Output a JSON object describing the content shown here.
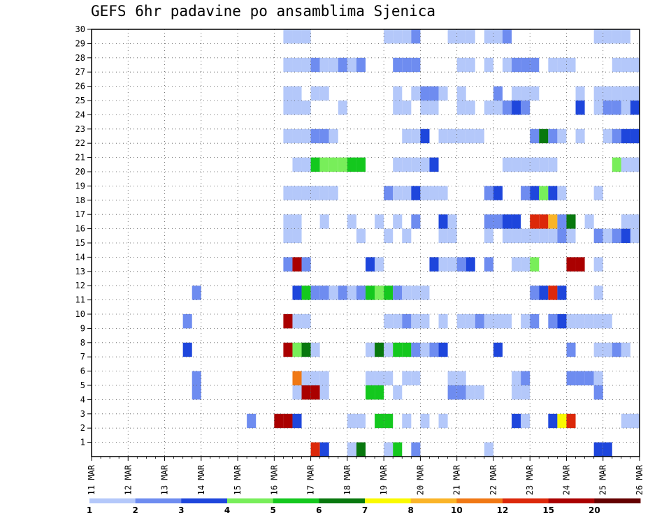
{
  "chart_data": {
    "type": "heatmap",
    "title": "GEFS 6hr padavine po ansamblima Sjenica",
    "x_tick_labels": [
      "11 MAR",
      "12 MAR",
      "13 MAR",
      "14 MAR",
      "15 MAR",
      "16 MAR",
      "17 MAR",
      "18 MAR",
      "19 MAR",
      "20 MAR",
      "21 MAR",
      "22 MAR",
      "23 MAR",
      "24 MAR",
      "25 MAR",
      "26 MAR"
    ],
    "y_tick_labels": [
      "1",
      "2",
      "3",
      "4",
      "5",
      "6",
      "7",
      "8",
      "9",
      "10",
      "11",
      "12",
      "13",
      "14",
      "15",
      "16",
      "17",
      "18",
      "19",
      "20",
      "21",
      "22",
      "23",
      "24",
      "25",
      "26",
      "27",
      "28",
      "29",
      "30"
    ],
    "grid": true,
    "colorbar": {
      "placement": "bottom",
      "thresholds": [
        1,
        2,
        3,
        4,
        5,
        6,
        7,
        8,
        10,
        12,
        15,
        20
      ],
      "colors": [
        "#b4c8fa",
        "#6e8cf0",
        "#1e46dc",
        "#78ee5a",
        "#14c81e",
        "#08780e",
        "#fafa00",
        "#fab428",
        "#f07814",
        "#dc280a",
        "#aa0000",
        "#640000"
      ]
    },
    "notes_rows": "cells indexed by 6-hr step from 11 MAR 00Z; value codes are colorbar bin indices (1-12)",
    "cells": [
      [
        0,
        24,
        10
      ],
      [
        0,
        25,
        3
      ],
      [
        0,
        28,
        1
      ],
      [
        0,
        29,
        6
      ],
      [
        0,
        32,
        1
      ],
      [
        0,
        33,
        5
      ],
      [
        0,
        35,
        2
      ],
      [
        0,
        43,
        1
      ],
      [
        0,
        55,
        3
      ],
      [
        0,
        56,
        3
      ],
      [
        0,
        65,
        1
      ],
      [
        1,
        17,
        2
      ],
      [
        1,
        20,
        11
      ],
      [
        1,
        21,
        11
      ],
      [
        1,
        22,
        3
      ],
      [
        1,
        28,
        1
      ],
      [
        1,
        29,
        1
      ],
      [
        1,
        31,
        5
      ],
      [
        1,
        32,
        5
      ],
      [
        1,
        34,
        1
      ],
      [
        1,
        36,
        1
      ],
      [
        1,
        38,
        1
      ],
      [
        1,
        46,
        3
      ],
      [
        1,
        47,
        1
      ],
      [
        1,
        50,
        3
      ],
      [
        1,
        51,
        7
      ],
      [
        1,
        52,
        10
      ],
      [
        1,
        58,
        1
      ],
      [
        1,
        59,
        1
      ],
      [
        2,
        11,
        2
      ],
      [
        2,
        22,
        1
      ],
      [
        2,
        23,
        11
      ],
      [
        2,
        24,
        11
      ],
      [
        2,
        25,
        1
      ],
      [
        2,
        30,
        5
      ],
      [
        2,
        31,
        5
      ],
      [
        2,
        33,
        1
      ],
      [
        2,
        39,
        2
      ],
      [
        2,
        40,
        2
      ],
      [
        2,
        41,
        1
      ],
      [
        2,
        42,
        1
      ],
      [
        2,
        46,
        1
      ],
      [
        2,
        47,
        1
      ],
      [
        2,
        55,
        2
      ],
      [
        3,
        11,
        2
      ],
      [
        3,
        22,
        9
      ],
      [
        3,
        23,
        1
      ],
      [
        3,
        24,
        1
      ],
      [
        3,
        25,
        1
      ],
      [
        3,
        30,
        1
      ],
      [
        3,
        31,
        1
      ],
      [
        3,
        32,
        1
      ],
      [
        3,
        34,
        1
      ],
      [
        3,
        35,
        1
      ],
      [
        3,
        39,
        1
      ],
      [
        3,
        40,
        1
      ],
      [
        3,
        46,
        1
      ],
      [
        3,
        47,
        2
      ],
      [
        3,
        52,
        2
      ],
      [
        3,
        53,
        2
      ],
      [
        3,
        54,
        2
      ],
      [
        3,
        55,
        1
      ],
      [
        4,
        10,
        3
      ],
      [
        4,
        21,
        11
      ],
      [
        4,
        22,
        4
      ],
      [
        4,
        23,
        6
      ],
      [
        4,
        24,
        1
      ],
      [
        4,
        30,
        1
      ],
      [
        4,
        31,
        6
      ],
      [
        4,
        32,
        1
      ],
      [
        4,
        33,
        5
      ],
      [
        4,
        34,
        5
      ],
      [
        4,
        35,
        2
      ],
      [
        4,
        36,
        1
      ],
      [
        4,
        37,
        2
      ],
      [
        4,
        38,
        3
      ],
      [
        4,
        44,
        3
      ],
      [
        4,
        52,
        2
      ],
      [
        4,
        55,
        1
      ],
      [
        4,
        56,
        1
      ],
      [
        4,
        57,
        2
      ],
      [
        4,
        58,
        1
      ],
      [
        5,
        10,
        2
      ],
      [
        5,
        21,
        11
      ],
      [
        5,
        22,
        1
      ],
      [
        5,
        23,
        1
      ],
      [
        5,
        32,
        1
      ],
      [
        5,
        33,
        1
      ],
      [
        5,
        34,
        2
      ],
      [
        5,
        35,
        1
      ],
      [
        5,
        36,
        1
      ],
      [
        5,
        38,
        1
      ],
      [
        5,
        40,
        1
      ],
      [
        5,
        41,
        1
      ],
      [
        5,
        42,
        2
      ],
      [
        5,
        43,
        1
      ],
      [
        5,
        44,
        1
      ],
      [
        5,
        45,
        1
      ],
      [
        5,
        47,
        1
      ],
      [
        5,
        48,
        2
      ],
      [
        5,
        50,
        2
      ],
      [
        5,
        51,
        3
      ],
      [
        5,
        52,
        1
      ],
      [
        5,
        53,
        1
      ],
      [
        5,
        54,
        1
      ],
      [
        5,
        55,
        1
      ],
      [
        5,
        56,
        1
      ],
      [
        6,
        11,
        2
      ],
      [
        6,
        22,
        3
      ],
      [
        6,
        23,
        5
      ],
      [
        6,
        24,
        2
      ],
      [
        6,
        25,
        2
      ],
      [
        6,
        26,
        1
      ],
      [
        6,
        27,
        2
      ],
      [
        6,
        28,
        1
      ],
      [
        6,
        29,
        2
      ],
      [
        6,
        30,
        5
      ],
      [
        6,
        31,
        4
      ],
      [
        6,
        32,
        5
      ],
      [
        6,
        33,
        2
      ],
      [
        6,
        34,
        1
      ],
      [
        6,
        35,
        1
      ],
      [
        6,
        36,
        1
      ],
      [
        6,
        48,
        2
      ],
      [
        6,
        49,
        3
      ],
      [
        6,
        50,
        10
      ],
      [
        6,
        51,
        3
      ],
      [
        6,
        55,
        1
      ],
      [
        7,
        21,
        2
      ],
      [
        7,
        22,
        11
      ],
      [
        7,
        23,
        2
      ],
      [
        7,
        30,
        3
      ],
      [
        7,
        31,
        1
      ],
      [
        7,
        37,
        3
      ],
      [
        7,
        38,
        1
      ],
      [
        7,
        39,
        1
      ],
      [
        7,
        40,
        2
      ],
      [
        7,
        41,
        3
      ],
      [
        7,
        43,
        2
      ],
      [
        7,
        46,
        1
      ],
      [
        7,
        47,
        1
      ],
      [
        7,
        48,
        4
      ],
      [
        7,
        52,
        11
      ],
      [
        7,
        53,
        11
      ],
      [
        7,
        55,
        1
      ],
      [
        8,
        21,
        1
      ],
      [
        8,
        22,
        1
      ],
      [
        8,
        29,
        1
      ],
      [
        8,
        32,
        1
      ],
      [
        8,
        34,
        1
      ],
      [
        8,
        38,
        1
      ],
      [
        8,
        39,
        1
      ],
      [
        8,
        43,
        1
      ],
      [
        8,
        45,
        1
      ],
      [
        8,
        46,
        1
      ],
      [
        8,
        47,
        1
      ],
      [
        8,
        48,
        1
      ],
      [
        8,
        49,
        1
      ],
      [
        8,
        50,
        1
      ],
      [
        8,
        51,
        2
      ],
      [
        8,
        52,
        1
      ],
      [
        8,
        55,
        2
      ],
      [
        8,
        56,
        1
      ],
      [
        8,
        57,
        2
      ],
      [
        8,
        58,
        3
      ],
      [
        8,
        59,
        1
      ],
      [
        9,
        21,
        1
      ],
      [
        9,
        22,
        1
      ],
      [
        9,
        25,
        1
      ],
      [
        9,
        28,
        1
      ],
      [
        9,
        31,
        1
      ],
      [
        9,
        33,
        1
      ],
      [
        9,
        35,
        2
      ],
      [
        9,
        38,
        3
      ],
      [
        9,
        39,
        1
      ],
      [
        9,
        43,
        2
      ],
      [
        9,
        44,
        2
      ],
      [
        9,
        45,
        3
      ],
      [
        9,
        46,
        3
      ],
      [
        9,
        48,
        10
      ],
      [
        9,
        49,
        10
      ],
      [
        9,
        50,
        8
      ],
      [
        9,
        51,
        2
      ],
      [
        9,
        52,
        6
      ],
      [
        9,
        54,
        1
      ],
      [
        9,
        58,
        1
      ],
      [
        9,
        59,
        1
      ],
      [
        9,
        60,
        1
      ],
      [
        9,
        61,
        1
      ],
      [
        10,
        21,
        1
      ],
      [
        10,
        22,
        1
      ],
      [
        10,
        23,
        1
      ],
      [
        10,
        24,
        1
      ],
      [
        10,
        25,
        1
      ],
      [
        10,
        26,
        1
      ],
      [
        10,
        32,
        2
      ],
      [
        10,
        33,
        1
      ],
      [
        10,
        34,
        1
      ],
      [
        10,
        35,
        3
      ],
      [
        10,
        36,
        1
      ],
      [
        10,
        37,
        1
      ],
      [
        10,
        38,
        1
      ],
      [
        10,
        43,
        2
      ],
      [
        10,
        44,
        3
      ],
      [
        10,
        47,
        2
      ],
      [
        10,
        48,
        3
      ],
      [
        10,
        49,
        4
      ],
      [
        10,
        50,
        3
      ],
      [
        10,
        51,
        1
      ],
      [
        10,
        55,
        1
      ],
      [
        11,
        22,
        1
      ],
      [
        11,
        23,
        1
      ],
      [
        11,
        24,
        5
      ],
      [
        11,
        25,
        4
      ],
      [
        11,
        26,
        4
      ],
      [
        11,
        27,
        4
      ],
      [
        11,
        28,
        5
      ],
      [
        11,
        29,
        5
      ],
      [
        11,
        33,
        1
      ],
      [
        11,
        34,
        1
      ],
      [
        11,
        35,
        1
      ],
      [
        11,
        36,
        1
      ],
      [
        11,
        37,
        3
      ],
      [
        11,
        45,
        1
      ],
      [
        11,
        46,
        1
      ],
      [
        11,
        47,
        1
      ],
      [
        11,
        48,
        1
      ],
      [
        11,
        49,
        1
      ],
      [
        11,
        50,
        1
      ],
      [
        11,
        57,
        4
      ],
      [
        11,
        58,
        1
      ],
      [
        11,
        59,
        1
      ],
      [
        12,
        21,
        1
      ],
      [
        12,
        22,
        1
      ],
      [
        12,
        23,
        1
      ],
      [
        12,
        24,
        2
      ],
      [
        12,
        25,
        2
      ],
      [
        12,
        26,
        1
      ],
      [
        12,
        34,
        1
      ],
      [
        12,
        35,
        1
      ],
      [
        12,
        36,
        3
      ],
      [
        12,
        38,
        1
      ],
      [
        12,
        39,
        1
      ],
      [
        12,
        40,
        1
      ],
      [
        12,
        41,
        1
      ],
      [
        12,
        42,
        1
      ],
      [
        12,
        48,
        2
      ],
      [
        12,
        49,
        6
      ],
      [
        12,
        50,
        2
      ],
      [
        12,
        51,
        1
      ],
      [
        12,
        53,
        1
      ],
      [
        12,
        56,
        1
      ],
      [
        12,
        57,
        2
      ],
      [
        12,
        58,
        3
      ],
      [
        12,
        59,
        3
      ],
      [
        13,
        21,
        1
      ],
      [
        13,
        22,
        1
      ],
      [
        13,
        23,
        1
      ],
      [
        13,
        27,
        1
      ],
      [
        13,
        33,
        1
      ],
      [
        13,
        34,
        1
      ],
      [
        13,
        36,
        1
      ],
      [
        13,
        37,
        1
      ],
      [
        13,
        40,
        1
      ],
      [
        13,
        41,
        1
      ],
      [
        13,
        43,
        1
      ],
      [
        13,
        44,
        1
      ],
      [
        13,
        45,
        2
      ],
      [
        13,
        46,
        3
      ],
      [
        13,
        47,
        2
      ],
      [
        13,
        53,
        3
      ],
      [
        13,
        55,
        1
      ],
      [
        13,
        56,
        2
      ],
      [
        13,
        57,
        2
      ],
      [
        13,
        58,
        1
      ],
      [
        13,
        59,
        3
      ],
      [
        13,
        60,
        1
      ],
      [
        13,
        61,
        1
      ],
      [
        14,
        21,
        1
      ],
      [
        14,
        22,
        1
      ],
      [
        14,
        24,
        1
      ],
      [
        14,
        25,
        1
      ],
      [
        14,
        33,
        1
      ],
      [
        14,
        35,
        1
      ],
      [
        14,
        36,
        2
      ],
      [
        14,
        37,
        2
      ],
      [
        14,
        38,
        1
      ],
      [
        14,
        40,
        1
      ],
      [
        14,
        44,
        2
      ],
      [
        14,
        46,
        1
      ],
      [
        14,
        47,
        1
      ],
      [
        14,
        48,
        1
      ],
      [
        14,
        53,
        1
      ],
      [
        14,
        55,
        1
      ],
      [
        14,
        56,
        1
      ],
      [
        14,
        57,
        1
      ],
      [
        14,
        58,
        1
      ],
      [
        14,
        59,
        1
      ],
      [
        15,
        21,
        1
      ],
      [
        15,
        22,
        1
      ],
      [
        15,
        23,
        1
      ],
      [
        15,
        24,
        2
      ],
      [
        15,
        25,
        1
      ],
      [
        15,
        26,
        1
      ],
      [
        15,
        27,
        2
      ],
      [
        15,
        28,
        1
      ],
      [
        15,
        29,
        2
      ],
      [
        15,
        33,
        2
      ],
      [
        15,
        34,
        2
      ],
      [
        15,
        35,
        2
      ],
      [
        15,
        40,
        1
      ],
      [
        15,
        41,
        1
      ],
      [
        15,
        43,
        1
      ],
      [
        15,
        45,
        1
      ],
      [
        15,
        46,
        2
      ],
      [
        15,
        47,
        2
      ],
      [
        15,
        48,
        2
      ],
      [
        15,
        50,
        1
      ],
      [
        15,
        51,
        1
      ],
      [
        15,
        52,
        1
      ],
      [
        15,
        57,
        1
      ],
      [
        15,
        58,
        1
      ],
      [
        15,
        59,
        1
      ],
      [
        15,
        60,
        1
      ],
      [
        15,
        61,
        1
      ],
      [
        15,
        62,
        1
      ],
      [
        15,
        63,
        1
      ],
      [
        16,
        21,
        1
      ],
      [
        16,
        22,
        1
      ],
      [
        16,
        23,
        1
      ],
      [
        16,
        32,
        1
      ],
      [
        16,
        33,
        1
      ],
      [
        16,
        34,
        1
      ],
      [
        16,
        35,
        2
      ],
      [
        16,
        39,
        1
      ],
      [
        16,
        40,
        1
      ],
      [
        16,
        41,
        1
      ],
      [
        16,
        43,
        1
      ],
      [
        16,
        44,
        1
      ],
      [
        16,
        45,
        2
      ],
      [
        16,
        55,
        1
      ],
      [
        16,
        56,
        1
      ],
      [
        16,
        57,
        1
      ],
      [
        16,
        58,
        1
      ],
      [
        16,
        62,
        2
      ],
      [
        16,
        63,
        2
      ]
    ]
  }
}
